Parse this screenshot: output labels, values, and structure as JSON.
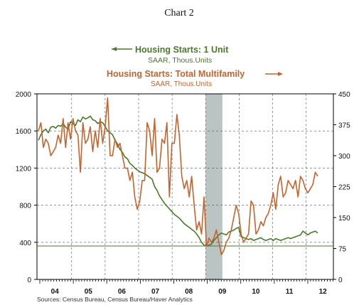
{
  "chart_data": {
    "type": "line",
    "title": "Chart 2",
    "series": [
      {
        "name": "Housing Starts: 1 Unit",
        "subtitle": "SAAR, Thous.Units",
        "axis": "left",
        "color": "#4a7a2a",
        "values": [
          1500,
          1560,
          1600,
          1620,
          1580,
          1640,
          1650,
          1630,
          1660,
          1650,
          1680,
          1640,
          1620,
          1700,
          1680,
          1660,
          1720,
          1700,
          1750,
          1730,
          1740,
          1760,
          1720,
          1710,
          1680,
          1700,
          1690,
          1650,
          1600,
          1580,
          1560,
          1500,
          1460,
          1400,
          1370,
          1320,
          1300,
          1250,
          1230,
          1200,
          1180,
          1160,
          1150,
          1140,
          1120,
          1100,
          1080,
          1000,
          960,
          900,
          860,
          820,
          790,
          760,
          730,
          700,
          680,
          660,
          630,
          600,
          580,
          560,
          540,
          520,
          490,
          450,
          400,
          370,
          360,
          370,
          380,
          420,
          450,
          480,
          500,
          490,
          480,
          510,
          520,
          530,
          550,
          560,
          460,
          450,
          440,
          430,
          440,
          420,
          430,
          440,
          450,
          430,
          420,
          430,
          440,
          420,
          440,
          430,
          420,
          430,
          440,
          450,
          440,
          450,
          460,
          470,
          480,
          520,
          500,
          480,
          500,
          510,
          520,
          500
        ]
      },
      {
        "name": "Housing Starts: Total Multifamily",
        "subtitle": "SAAR, Thous.Units",
        "axis": "right",
        "color": "#c8622a",
        "values": [
          360,
          380,
          320,
          340,
          330,
          300,
          310,
          320,
          350,
          330,
          390,
          320,
          380,
          340,
          390,
          360,
          350,
          260,
          380,
          330,
          340,
          370,
          310,
          360,
          320,
          390,
          330,
          370,
          440,
          300,
          300,
          340,
          320,
          330,
          300,
          270,
          270,
          240,
          260,
          200,
          170,
          190,
          240,
          240,
          380,
          360,
          300,
          390,
          260,
          270,
          340,
          330,
          380,
          200,
          330,
          330,
          400,
          350,
          250,
          220,
          240,
          200,
          250,
          180,
          120,
          140,
          110,
          200,
          80,
          100,
          90,
          100,
          120,
          90,
          60,
          70,
          90,
          100,
          120,
          150,
          180,
          160,
          110,
          90,
          100,
          110,
          190,
          180,
          110,
          120,
          140,
          130,
          150,
          160,
          180,
          210,
          170,
          230,
          250,
          200,
          210,
          240,
          230,
          220,
          240,
          200,
          250,
          240,
          220,
          210,
          220,
          230,
          260,
          250
        ]
      }
    ],
    "left_axis": {
      "ticks": [
        0,
        400,
        800,
        1200,
        1600,
        2000
      ],
      "tick_labels": [
        "0",
        "400",
        "800",
        "1200",
        "1600",
        "2000"
      ],
      "range": [
        0,
        2000
      ]
    },
    "right_axis": {
      "ticks": [
        0,
        75,
        150,
        225,
        300,
        375,
        450
      ],
      "tick_labels": [
        "0",
        "75",
        "150",
        "225",
        "300",
        "375",
        "450"
      ],
      "range": [
        0,
        450
      ]
    },
    "x_labels": [
      "04",
      "05",
      "06",
      "07",
      "08",
      "09",
      "10",
      "11",
      "12"
    ],
    "recession_shading": {
      "start_year": "08",
      "end_year": "09",
      "color": "#b9c4c3"
    },
    "reference_line": {
      "value": 360,
      "axis": "left",
      "color": "#4a7a2a"
    },
    "grid": true,
    "source": "Sources:  Census Bureau, Census Bureau/Haver Analytics"
  }
}
